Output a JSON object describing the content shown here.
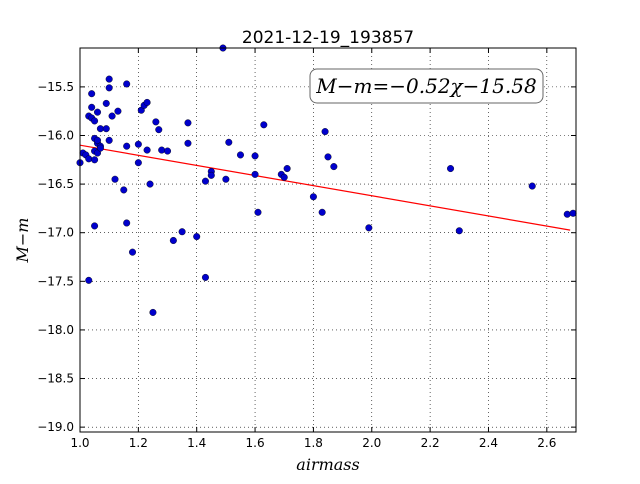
{
  "chart_data": {
    "type": "scatter",
    "title": "2021-12-19_193857",
    "xlabel": "airmass",
    "ylabel": "M−m",
    "xlim": [
      1.0,
      2.7
    ],
    "ylim": [
      -19.05,
      -15.1
    ],
    "x_ticks": [
      1.0,
      1.2,
      1.4,
      1.6,
      1.8,
      2.0,
      2.2,
      2.4,
      2.6
    ],
    "x_tick_labels": [
      "1.0",
      "1.2",
      "1.4",
      "1.6",
      "1.8",
      "2.0",
      "2.2",
      "2.4",
      "2.6"
    ],
    "y_ticks": [
      -19.0,
      -18.5,
      -18.0,
      -17.5,
      -17.0,
      -16.5,
      -16.0,
      -15.5
    ],
    "y_tick_labels": [
      "−19.0",
      "−18.5",
      "−18.0",
      "−17.5",
      "−17.0",
      "−16.5",
      "−16.0",
      "−15.5"
    ],
    "grid": true,
    "marker_color": "#0000cc",
    "fit_line_color": "#ff0000",
    "fit": {
      "label": "M−m=−0.52χ−15.58",
      "slope": -0.52,
      "intercept": -15.58,
      "x_range": [
        1.0,
        2.68
      ]
    },
    "points": [
      {
        "x": 1.0,
        "y": -16.28
      },
      {
        "x": 1.01,
        "y": -16.18
      },
      {
        "x": 1.02,
        "y": -16.2
      },
      {
        "x": 1.03,
        "y": -16.24
      },
      {
        "x": 1.03,
        "y": -17.49
      },
      {
        "x": 1.03,
        "y": -15.8
      },
      {
        "x": 1.04,
        "y": -15.82
      },
      {
        "x": 1.04,
        "y": -15.57
      },
      {
        "x": 1.04,
        "y": -15.71
      },
      {
        "x": 1.05,
        "y": -15.85
      },
      {
        "x": 1.05,
        "y": -16.03
      },
      {
        "x": 1.05,
        "y": -16.16
      },
      {
        "x": 1.05,
        "y": -16.25
      },
      {
        "x": 1.05,
        "y": -16.93
      },
      {
        "x": 1.06,
        "y": -16.08
      },
      {
        "x": 1.06,
        "y": -16.05
      },
      {
        "x": 1.06,
        "y": -15.76
      },
      {
        "x": 1.06,
        "y": -16.18
      },
      {
        "x": 1.07,
        "y": -15.93
      },
      {
        "x": 1.07,
        "y": -16.11
      },
      {
        "x": 1.07,
        "y": -16.13
      },
      {
        "x": 1.09,
        "y": -15.93
      },
      {
        "x": 1.09,
        "y": -15.67
      },
      {
        "x": 1.1,
        "y": -15.51
      },
      {
        "x": 1.1,
        "y": -15.42
      },
      {
        "x": 1.1,
        "y": -16.05
      },
      {
        "x": 1.11,
        "y": -15.8
      },
      {
        "x": 1.12,
        "y": -16.45
      },
      {
        "x": 1.13,
        "y": -15.75
      },
      {
        "x": 1.15,
        "y": -16.56
      },
      {
        "x": 1.16,
        "y": -16.11
      },
      {
        "x": 1.16,
        "y": -16.9
      },
      {
        "x": 1.16,
        "y": -15.47
      },
      {
        "x": 1.18,
        "y": -17.2
      },
      {
        "x": 1.2,
        "y": -16.09
      },
      {
        "x": 1.2,
        "y": -16.28
      },
      {
        "x": 1.21,
        "y": -15.74
      },
      {
        "x": 1.22,
        "y": -15.69
      },
      {
        "x": 1.23,
        "y": -15.66
      },
      {
        "x": 1.23,
        "y": -16.15
      },
      {
        "x": 1.24,
        "y": -16.5
      },
      {
        "x": 1.25,
        "y": -17.82
      },
      {
        "x": 1.26,
        "y": -15.86
      },
      {
        "x": 1.27,
        "y": -15.94
      },
      {
        "x": 1.28,
        "y": -16.15
      },
      {
        "x": 1.3,
        "y": -16.16
      },
      {
        "x": 1.32,
        "y": -17.08
      },
      {
        "x": 1.35,
        "y": -16.99
      },
      {
        "x": 1.37,
        "y": -16.08
      },
      {
        "x": 1.37,
        "y": -15.87
      },
      {
        "x": 1.4,
        "y": -17.04
      },
      {
        "x": 1.43,
        "y": -16.47
      },
      {
        "x": 1.43,
        "y": -17.46
      },
      {
        "x": 1.45,
        "y": -16.37
      },
      {
        "x": 1.45,
        "y": -16.41
      },
      {
        "x": 1.49,
        "y": -15.1
      },
      {
        "x": 1.5,
        "y": -16.45
      },
      {
        "x": 1.51,
        "y": -16.07
      },
      {
        "x": 1.55,
        "y": -16.2
      },
      {
        "x": 1.6,
        "y": -16.21
      },
      {
        "x": 1.6,
        "y": -16.4
      },
      {
        "x": 1.61,
        "y": -16.79
      },
      {
        "x": 1.63,
        "y": -15.89
      },
      {
        "x": 1.69,
        "y": -16.4
      },
      {
        "x": 1.7,
        "y": -16.43
      },
      {
        "x": 1.71,
        "y": -16.34
      },
      {
        "x": 1.8,
        "y": -16.63
      },
      {
        "x": 1.83,
        "y": -16.79
      },
      {
        "x": 1.84,
        "y": -15.96
      },
      {
        "x": 1.85,
        "y": -16.22
      },
      {
        "x": 1.87,
        "y": -16.32
      },
      {
        "x": 1.99,
        "y": -16.95
      },
      {
        "x": 2.27,
        "y": -16.34
      },
      {
        "x": 2.3,
        "y": -16.98
      },
      {
        "x": 2.55,
        "y": -16.52
      },
      {
        "x": 2.67,
        "y": -16.81
      },
      {
        "x": 2.69,
        "y": -16.8
      }
    ]
  }
}
